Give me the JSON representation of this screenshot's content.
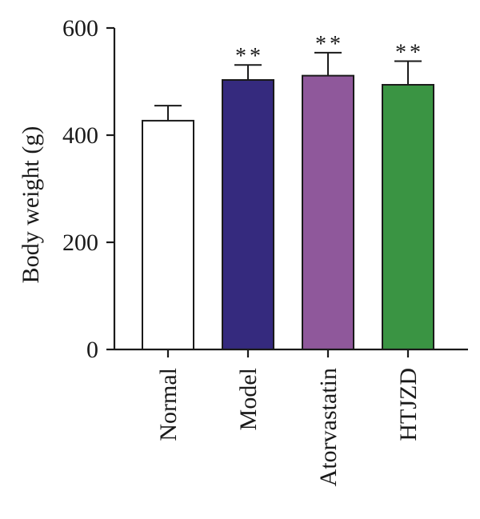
{
  "chart_data": {
    "type": "bar",
    "categories": [
      "Normal",
      "Model",
      "Atorvastatin",
      "HTJZD"
    ],
    "values": [
      427,
      503,
      511,
      494
    ],
    "errors": [
      28,
      28,
      43,
      44
    ],
    "significance": [
      "",
      "**",
      "**",
      "**"
    ],
    "colors": [
      "#ffffff",
      "#352a7e",
      "#8f589b",
      "#3a9443"
    ],
    "ylabel": "Body weight (g)",
    "xlabel": "",
    "ylim": [
      0,
      600
    ],
    "yticks": [
      0,
      200,
      400,
      600
    ],
    "grid": false
  }
}
